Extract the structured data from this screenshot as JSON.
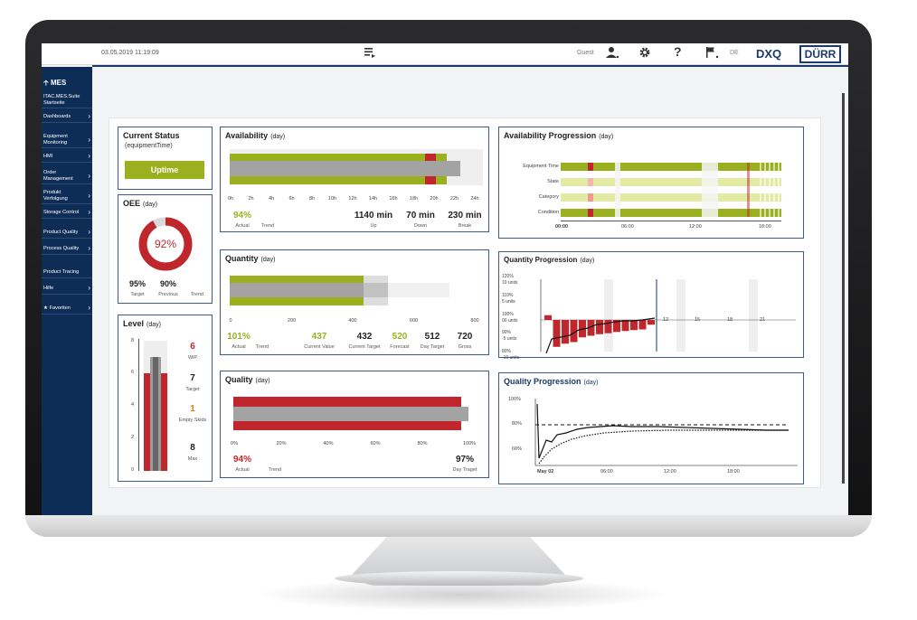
{
  "topbar": {
    "datetime": "03.05.2019 11:19:09",
    "guest_label": "Guest",
    "lang": "DE",
    "brand": "DXQ",
    "logo": "DÜRR",
    "icons": [
      "list-icon",
      "user-icon",
      "gear-icon",
      "help-icon",
      "flag-icon"
    ]
  },
  "sidebar": {
    "header": "MES",
    "items": [
      {
        "label": "ITAC.MES.Suite Startseite",
        "chevron": false
      },
      {
        "label": "Dashboards",
        "chevron": true
      },
      {
        "label": "Equipment Monitoring",
        "chevron": true
      },
      {
        "label": "HMI",
        "chevron": true
      },
      {
        "label": "Order Management",
        "chevron": true
      },
      {
        "label": "Produkt Verfolgung",
        "chevron": true
      },
      {
        "label": "Storage Control",
        "chevron": true
      },
      {
        "label": "Product Quality",
        "chevron": true
      },
      {
        "label": "Process Quality",
        "chevron": true
      },
      {
        "label": "Product Tracing",
        "chevron": false
      },
      {
        "label": "Hilfe",
        "chevron": true
      },
      {
        "label": "Favoriten",
        "chevron": true
      }
    ]
  },
  "status": {
    "title": "Current Status",
    "subtitle": "(equipmentTime)",
    "value": "Uptime"
  },
  "oee": {
    "title": "OEE",
    "unit": "(day)",
    "value": "92%",
    "percent": 92,
    "target": "95%",
    "previous": "90%",
    "target_label": "Target",
    "previous_label": "Previous",
    "trend_label": "Trend"
  },
  "level": {
    "title": "Level",
    "unit": "(day)",
    "axis": [
      "8",
      "6",
      "4",
      "2",
      "0"
    ],
    "wip": "6",
    "wip_label": "WiP",
    "target": "7",
    "target_label": "Target",
    "empty": "1",
    "empty_label": "Empty Skids",
    "max": "8",
    "max_label": "Max"
  },
  "availability": {
    "title": "Availability",
    "unit": "(day)",
    "ticks": [
      "0h",
      "2h",
      "4h",
      "6h",
      "8h",
      "10h",
      "12h",
      "14h",
      "16h",
      "18h",
      "20h",
      "22h",
      "24h"
    ],
    "actual": "94%",
    "actual_label": "Actual",
    "trend_label": "Trend",
    "up": "1140 min",
    "up_label": "Up",
    "down": "70 min",
    "down_label": "Down",
    "brk": "230 min",
    "brk_label": "Break"
  },
  "quantity": {
    "title": "Quantity",
    "unit": "(day)",
    "ticks": [
      "0",
      "200",
      "400",
      "600",
      "800"
    ],
    "actual": "101%",
    "actual_label": "Actual",
    "trend_label": "Trend",
    "current_value": "437",
    "current_value_label": "Current Value",
    "current_target": "432",
    "current_target_label": "Current Target",
    "forecast": "520",
    "forecast_label": "Forecast",
    "day_target": "512",
    "day_target_label": "Day Target",
    "gross": "720",
    "gross_label": "Gross"
  },
  "quality": {
    "title": "Quality",
    "unit": "(day)",
    "ticks": [
      "0%",
      "20%",
      "40%",
      "60%",
      "80%",
      "100%"
    ],
    "actual": "94%",
    "actual_label": "Actual",
    "trend_label": "Trend",
    "day_target": "97%",
    "day_target_label": "Day Traget"
  },
  "avail_prog": {
    "title": "Availability Progression",
    "unit": "(day)",
    "rows": [
      "Equipment Time",
      "State",
      "Category",
      "Condition"
    ],
    "xticks": [
      "00:00",
      "06:00",
      "12:00",
      "18:00"
    ]
  },
  "qty_prog": {
    "title": "Quantity Progression",
    "unit": "(day)",
    "y_labels": [
      "120%",
      "10 units",
      "110%",
      "5 units",
      "100%",
      "00 units",
      "90%",
      "-5 units",
      "80%",
      "-10 units"
    ],
    "xticks": [
      "12",
      "15",
      "18",
      "21"
    ]
  },
  "qual_prog": {
    "title": "Quality Progression",
    "unit": "(day)",
    "y_labels": [
      "100%",
      "80%",
      "60%"
    ],
    "xticks": [
      "May 02",
      "06:00",
      "12:00",
      "18:00"
    ]
  },
  "colors": {
    "accent_green": "#9ab01f",
    "accent_red": "#c0272d",
    "navy": "#0d2d57",
    "grey": "#a3a3a3"
  }
}
